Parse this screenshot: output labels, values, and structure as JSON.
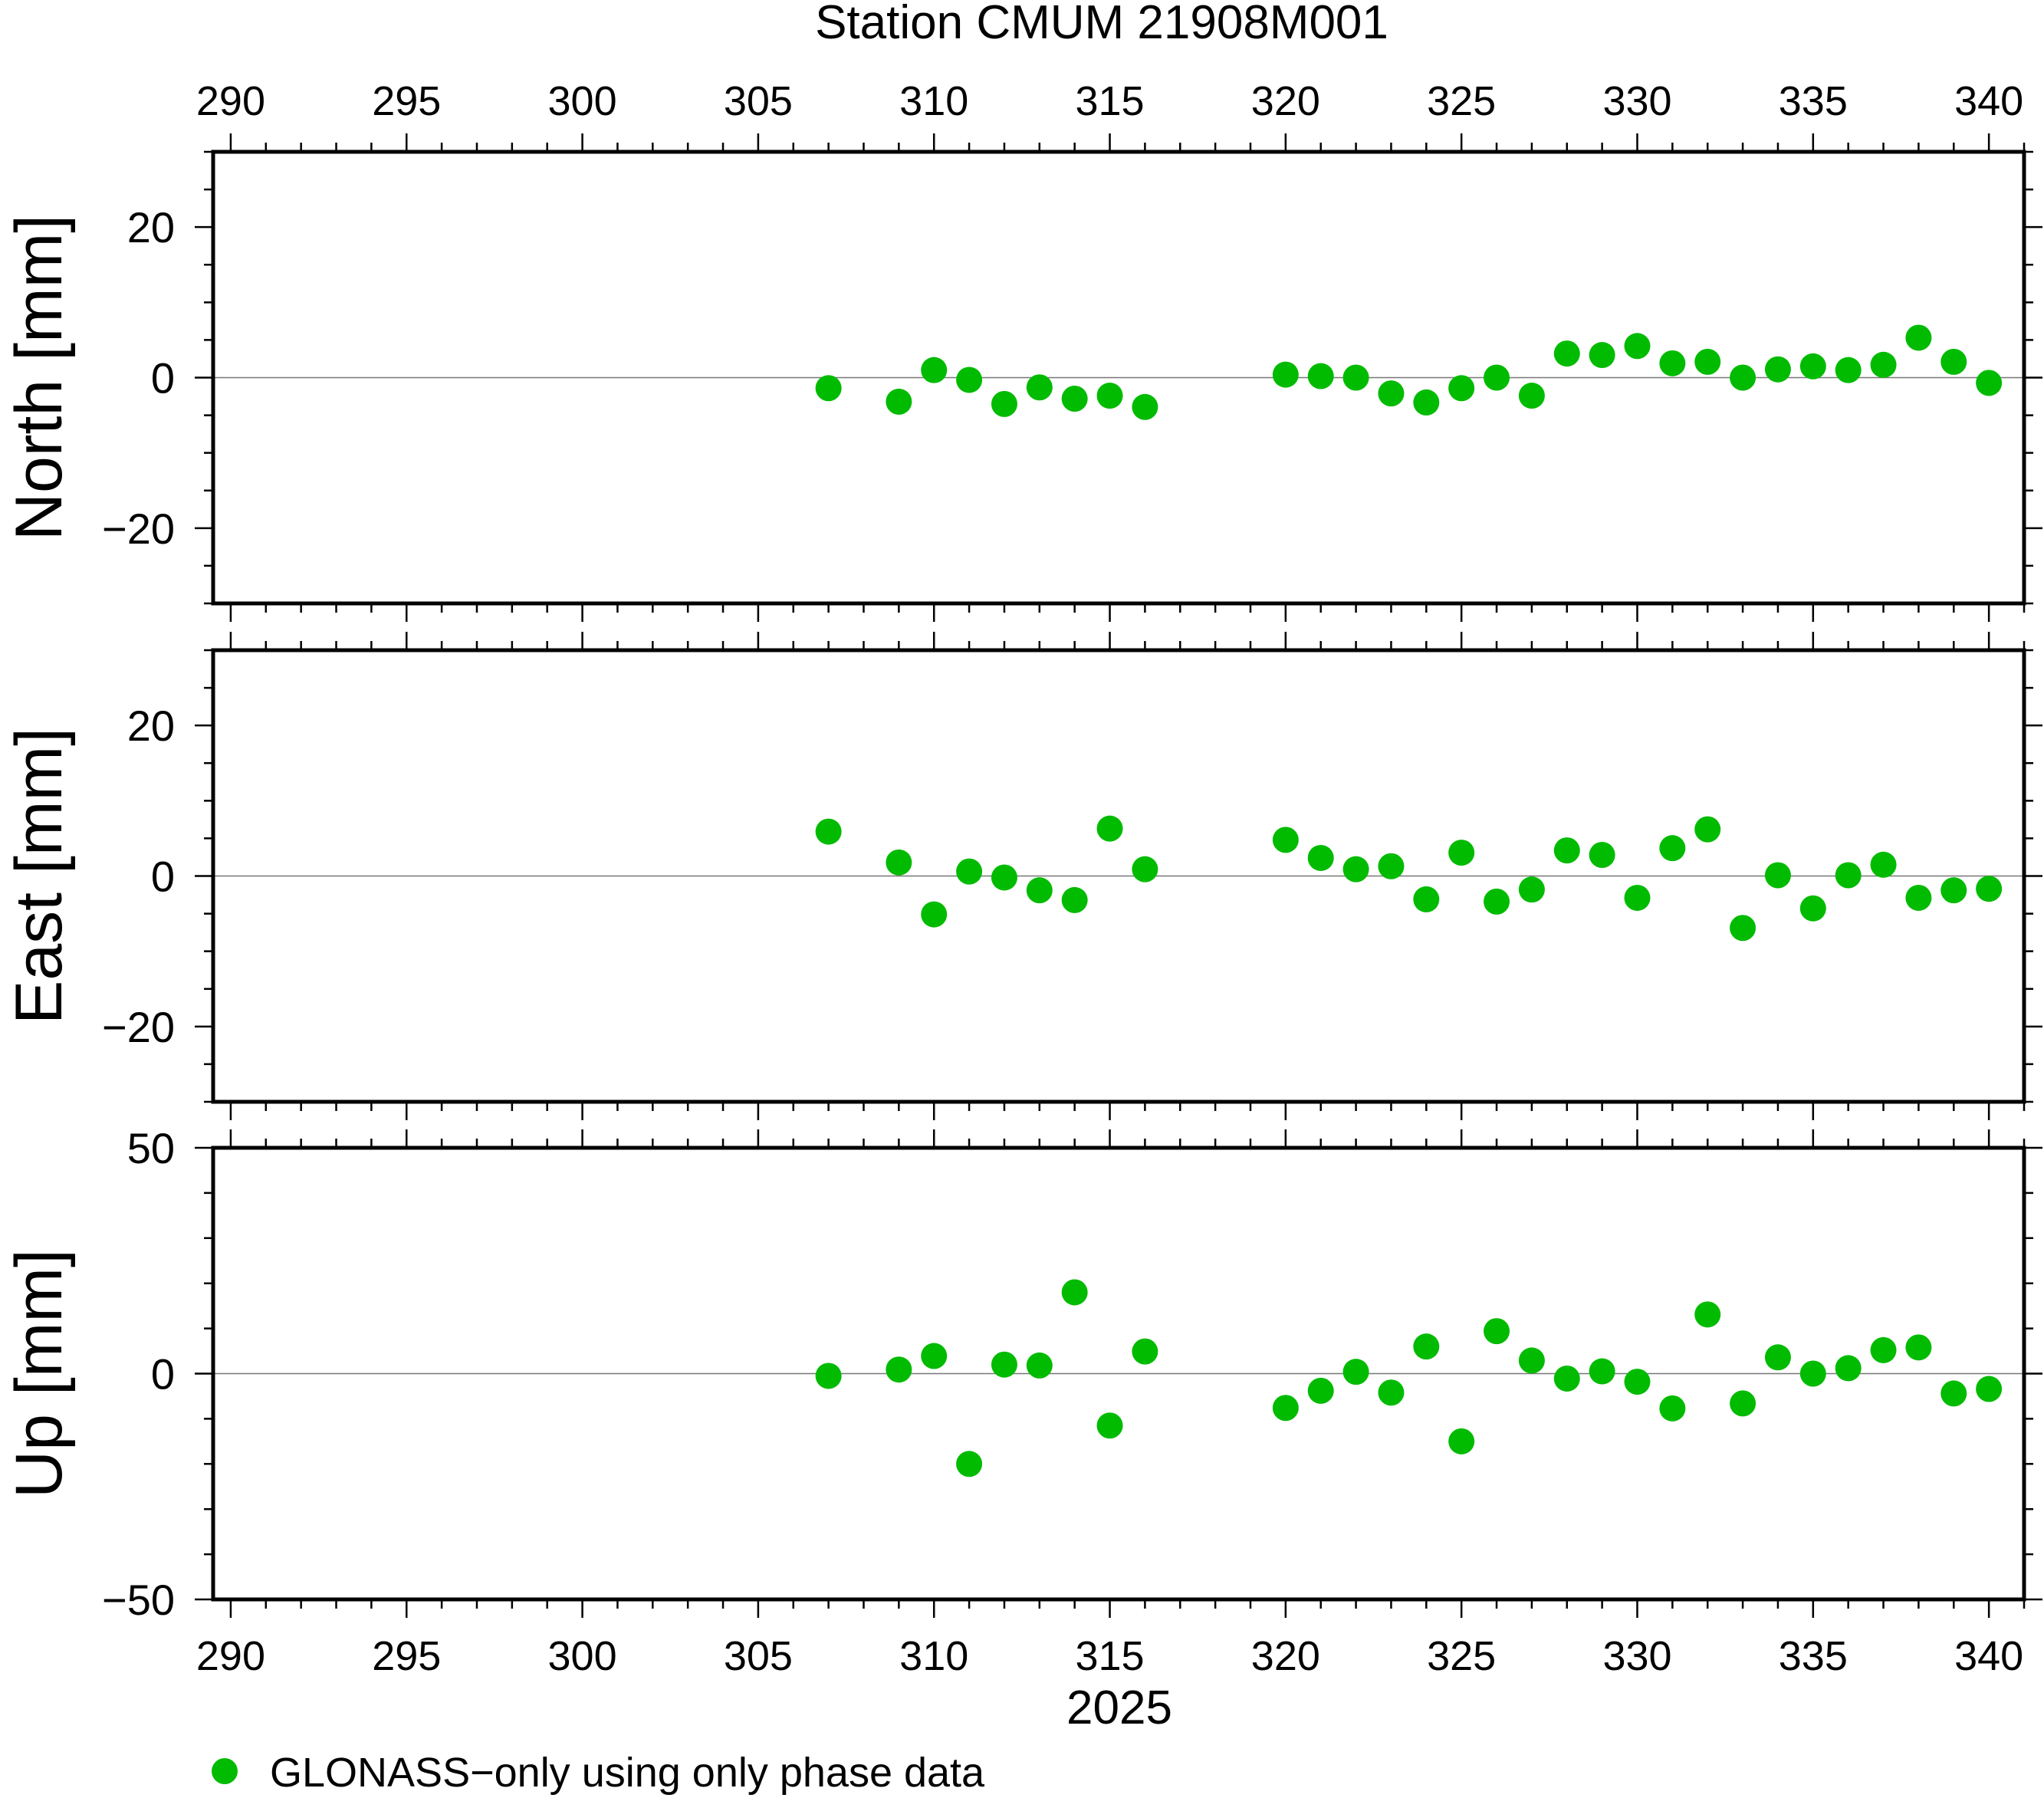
{
  "chart_data": {
    "type": "scatter",
    "title": "Station CMUM 21908M001",
    "xlabel": "2025",
    "xlim": [
      289.5,
      341
    ],
    "xticks": [
      290,
      295,
      300,
      305,
      310,
      315,
      320,
      325,
      330,
      335,
      340
    ],
    "marker_color": "#00bb00",
    "legend": {
      "label": "GLONASS−only using only phase data",
      "position": "bottom-left"
    },
    "x": [
      307,
      309,
      310,
      311,
      312,
      313,
      314,
      315,
      316,
      320,
      321,
      322,
      323,
      324,
      325,
      326,
      327,
      328,
      329,
      330,
      331,
      332,
      333,
      334,
      335,
      336,
      337,
      338,
      339,
      340
    ],
    "panels": [
      {
        "ylabel": "North [mm]",
        "ylim": [
          -30,
          30
        ],
        "yticks": [
          20,
          0,
          -20
        ],
        "ytick_labels": [
          "20",
          "0",
          "−20"
        ],
        "values": [
          -1.4,
          -3.2,
          1.0,
          -0.3,
          -3.5,
          -1.3,
          -2.8,
          -2.4,
          -3.9,
          0.4,
          0.2,
          0.0,
          -2.1,
          -3.3,
          -1.4,
          0.0,
          -2.4,
          3.2,
          3.0,
          4.2,
          1.9,
          2.1,
          0.0,
          1.1,
          1.5,
          1.0,
          1.7,
          5.3,
          2.1,
          -0.7
        ]
      },
      {
        "ylabel": "East [mm]",
        "ylim": [
          -30,
          30
        ],
        "yticks": [
          20,
          0,
          -20
        ],
        "ytick_labels": [
          "20",
          "0",
          "−20"
        ],
        "values": [
          5.9,
          1.8,
          -5.1,
          0.6,
          -0.2,
          -1.9,
          -3.2,
          6.3,
          0.9,
          4.8,
          2.4,
          0.9,
          1.3,
          -3.1,
          3.1,
          -3.4,
          -1.8,
          3.4,
          2.8,
          -2.9,
          3.7,
          6.2,
          -6.9,
          0.1,
          -4.3,
          0.1,
          1.5,
          -2.9,
          -1.9,
          -1.7
        ]
      },
      {
        "ylabel": "Up [mm]",
        "ylim": [
          -50,
          50
        ],
        "yticks": [
          50,
          0,
          -50
        ],
        "ytick_labels": [
          "50",
          "0",
          "−50"
        ],
        "values": [
          -0.5,
          0.9,
          3.9,
          -20.0,
          2.0,
          1.8,
          18.0,
          -11.5,
          4.9,
          -7.6,
          -3.8,
          0.4,
          -4.2,
          6.0,
          -15.0,
          9.4,
          2.9,
          -1.1,
          0.5,
          -1.8,
          -7.7,
          13.1,
          -6.6,
          3.6,
          0.0,
          1.2,
          5.2,
          5.8,
          -4.4,
          -3.4
        ]
      }
    ]
  }
}
